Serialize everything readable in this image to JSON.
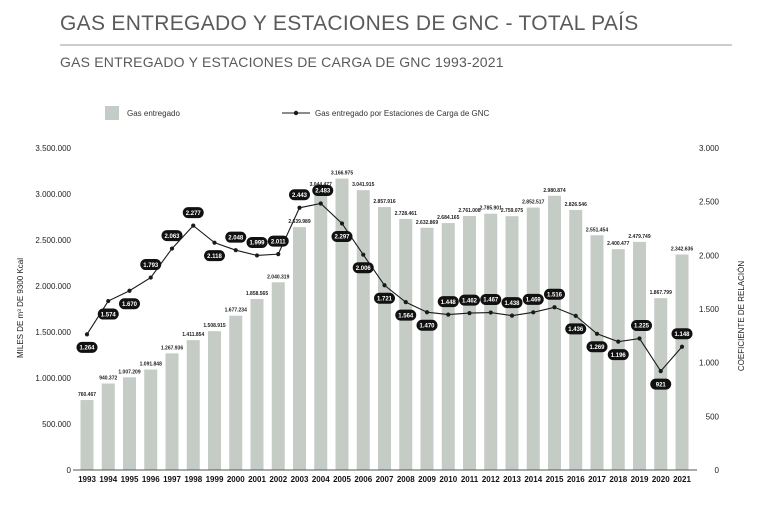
{
  "header": {
    "title": "GAS ENTREGADO Y ESTACIONES DE GNC - TOTAL PAÍS",
    "subtitle": "GAS ENTREGADO Y ESTACIONES DE CARGA DE GNC 1993-2021"
  },
  "colors": {
    "bar": "#c5ccc6",
    "line": "#1a1a1a",
    "pill": "#111111",
    "title": "#5a5a5a",
    "rule": "#9a9a9a"
  },
  "chart_data": {
    "type": "bar+line",
    "categories": [
      "1993",
      "1994",
      "1995",
      "1996",
      "1997",
      "1998",
      "1999",
      "2000",
      "2001",
      "2002",
      "2003",
      "2004",
      "2005",
      "2006",
      "2007",
      "2008",
      "2009",
      "2010",
      "2011",
      "2012",
      "2013",
      "2014",
      "2015",
      "2016",
      "2017",
      "2018",
      "2019",
      "2020",
      "2021"
    ],
    "series": [
      {
        "name": "Gas entregado",
        "type": "bar",
        "axis": "left",
        "values": [
          760467,
          940372,
          1007209,
          1091848,
          1267936,
          1411854,
          1508915,
          1677234,
          1858565,
          2040319,
          2639989,
          3044477,
          3166975,
          3041915,
          2857916,
          2728461,
          2632869,
          2684165,
          2761008,
          2785901,
          2759075,
          2852517,
          2980874,
          2826546,
          2551454,
          2400477,
          2479749,
          1867799,
          2342636
        ],
        "labels": [
          "760.467",
          "940.372",
          "1.007.209",
          "1.091.848",
          "1.267.936",
          "1.411.854",
          "1.508.915",
          "1.677.234",
          "1.858.565",
          "2.040.319",
          "2.639.989",
          "3.044.477",
          "3.166.975",
          "3.041.915",
          "2.857.916",
          "2.728.461",
          "2.632.869",
          "2.684.165",
          "2.761.008",
          "2.785.901",
          "2.759.075",
          "2.852.517",
          "2.980.874",
          "2.826.546",
          "2.551.454",
          "2.400.477",
          "2.479.749",
          "1.867.799",
          "2.342.636"
        ]
      },
      {
        "name": "Gas entregado por Estaciones de Carga de GNC",
        "type": "line",
        "axis": "right",
        "values": [
          1264,
          1574,
          1670,
          1793,
          2063,
          2277,
          2118,
          2048,
          1999,
          2011,
          2443,
          2483,
          2297,
          2006,
          1721,
          1564,
          1470,
          1448,
          1462,
          1467,
          1438,
          1469,
          1516,
          1436,
          1269,
          1196,
          1225,
          921,
          1148
        ],
        "labels": [
          "1.264",
          "1.574",
          "1.670",
          "1.793",
          "2.063",
          "2.277",
          "2.118",
          "2.048",
          "1.999",
          "2.011",
          "2.443",
          "2.483",
          "2.297",
          "2.006",
          "1.721",
          "1.564",
          "1.470",
          "1.448",
          "1.462",
          "1.467",
          "1.438",
          "1.469",
          "1.516",
          "1.436",
          "1.269",
          "1.196",
          "1.225",
          "921",
          "1.148"
        ]
      }
    ],
    "left_axis": {
      "label": "MILES DE m³ DE 9300 Kcal",
      "range": [
        0,
        3500000
      ],
      "ticks": [
        0,
        500000,
        1000000,
        1500000,
        2000000,
        2500000,
        3000000,
        3500000
      ],
      "tick_labels": [
        "0",
        "500.000",
        "1.000.000",
        "1.500.000",
        "2.000.000",
        "2.500.000",
        "3.000.000",
        "3.500.000"
      ]
    },
    "right_axis": {
      "label": "COEFICIENTE DE RELACIÓN",
      "range": [
        0,
        3000
      ],
      "ticks": [
        0,
        500,
        1000,
        1500,
        2000,
        2500,
        3000
      ],
      "tick_labels": [
        "0",
        "500",
        "1.000",
        "1.500",
        "2.000",
        "2.500",
        "3.000"
      ]
    },
    "grid": false,
    "legend": "top-left"
  }
}
